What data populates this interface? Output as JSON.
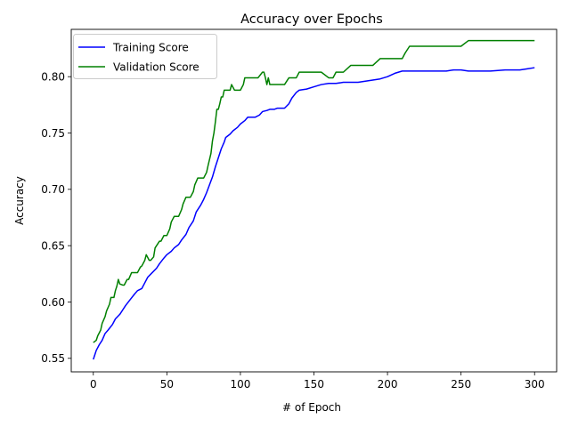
{
  "chart_data": {
    "type": "line",
    "title": "Accuracy over Epochs",
    "xlabel": "# of Epoch",
    "ylabel": "Accuracy",
    "xlim": [
      -15,
      315
    ],
    "ylim": [
      0.538,
      0.842
    ],
    "xticks": [
      0,
      50,
      100,
      150,
      200,
      250,
      300
    ],
    "yticks": [
      0.55,
      0.6,
      0.65,
      0.7,
      0.75,
      0.8
    ],
    "ytick_labels": [
      "0.55",
      "0.60",
      "0.65",
      "0.70",
      "0.75",
      "0.80"
    ],
    "grid": false,
    "legend_position": "top-left",
    "series": [
      {
        "name": "Training Score",
        "color": "#0000ff",
        "x": [
          0,
          1,
          2,
          4,
          6,
          8,
          10,
          13,
          15,
          18,
          20,
          22,
          25,
          28,
          30,
          33,
          35,
          37,
          40,
          43,
          45,
          48,
          50,
          53,
          55,
          58,
          60,
          63,
          65,
          68,
          70,
          73,
          75,
          77,
          79,
          81,
          83,
          85,
          87,
          89,
          90,
          93,
          95,
          98,
          100,
          103,
          105,
          108,
          110,
          113,
          115,
          118,
          120,
          123,
          125,
          128,
          130,
          133,
          135,
          138,
          140,
          145,
          150,
          155,
          160,
          165,
          170,
          175,
          180,
          185,
          190,
          195,
          200,
          205,
          210,
          215,
          220,
          230,
          240,
          245,
          250,
          255,
          260,
          270,
          280,
          290,
          295,
          300
        ],
        "y": [
          0.549,
          0.553,
          0.557,
          0.562,
          0.566,
          0.572,
          0.575,
          0.58,
          0.585,
          0.589,
          0.593,
          0.597,
          0.602,
          0.607,
          0.61,
          0.612,
          0.617,
          0.622,
          0.626,
          0.63,
          0.634,
          0.639,
          0.642,
          0.645,
          0.648,
          0.651,
          0.655,
          0.66,
          0.666,
          0.672,
          0.68,
          0.686,
          0.691,
          0.697,
          0.704,
          0.711,
          0.72,
          0.728,
          0.736,
          0.742,
          0.746,
          0.749,
          0.752,
          0.755,
          0.758,
          0.761,
          0.764,
          0.764,
          0.764,
          0.766,
          0.769,
          0.77,
          0.771,
          0.771,
          0.772,
          0.772,
          0.772,
          0.776,
          0.781,
          0.786,
          0.788,
          0.789,
          0.791,
          0.793,
          0.794,
          0.794,
          0.795,
          0.795,
          0.795,
          0.796,
          0.797,
          0.798,
          0.8,
          0.803,
          0.805,
          0.805,
          0.805,
          0.805,
          0.805,
          0.806,
          0.806,
          0.805,
          0.805,
          0.805,
          0.806,
          0.806,
          0.807,
          0.808
        ]
      },
      {
        "name": "Validation Score",
        "color": "#008000",
        "x": [
          0,
          2,
          3,
          5,
          6,
          8,
          9,
          11,
          12,
          14,
          15,
          16,
          17,
          18,
          20,
          21,
          23,
          24,
          26,
          28,
          30,
          32,
          33,
          35,
          36,
          38,
          39,
          41,
          42,
          45,
          46,
          48,
          50,
          52,
          53,
          55,
          56,
          58,
          60,
          61,
          63,
          64,
          66,
          68,
          69,
          71,
          73,
          75,
          77,
          78,
          80,
          81,
          82,
          83,
          84,
          85,
          86,
          87,
          88,
          89,
          90,
          91,
          93,
          94,
          96,
          98,
          100,
          102,
          103,
          105,
          108,
          110,
          112,
          115,
          116,
          117,
          118,
          119,
          120,
          122,
          125,
          128,
          130,
          133,
          135,
          138,
          140,
          143,
          145,
          148,
          150,
          155,
          160,
          163,
          165,
          170,
          175,
          180,
          185,
          190,
          195,
          200,
          205,
          210,
          212,
          215,
          220,
          225,
          230,
          240,
          250,
          255,
          260,
          270,
          280,
          290,
          300
        ],
        "y": [
          0.564,
          0.566,
          0.57,
          0.575,
          0.581,
          0.587,
          0.592,
          0.598,
          0.604,
          0.604,
          0.61,
          0.614,
          0.62,
          0.616,
          0.615,
          0.615,
          0.62,
          0.62,
          0.626,
          0.626,
          0.626,
          0.631,
          0.632,
          0.637,
          0.642,
          0.637,
          0.637,
          0.64,
          0.648,
          0.654,
          0.654,
          0.659,
          0.659,
          0.665,
          0.671,
          0.676,
          0.676,
          0.676,
          0.682,
          0.687,
          0.693,
          0.693,
          0.693,
          0.698,
          0.704,
          0.71,
          0.71,
          0.71,
          0.715,
          0.721,
          0.732,
          0.743,
          0.75,
          0.76,
          0.771,
          0.771,
          0.776,
          0.782,
          0.782,
          0.788,
          0.788,
          0.788,
          0.788,
          0.793,
          0.788,
          0.788,
          0.788,
          0.793,
          0.799,
          0.799,
          0.799,
          0.799,
          0.799,
          0.804,
          0.804,
          0.799,
          0.793,
          0.799,
          0.793,
          0.793,
          0.793,
          0.793,
          0.793,
          0.799,
          0.799,
          0.799,
          0.804,
          0.804,
          0.804,
          0.804,
          0.804,
          0.804,
          0.799,
          0.799,
          0.804,
          0.804,
          0.81,
          0.81,
          0.81,
          0.81,
          0.816,
          0.816,
          0.816,
          0.816,
          0.821,
          0.827,
          0.827,
          0.827,
          0.827,
          0.827,
          0.827,
          0.832,
          0.832,
          0.832,
          0.832,
          0.832,
          0.832
        ]
      }
    ]
  }
}
